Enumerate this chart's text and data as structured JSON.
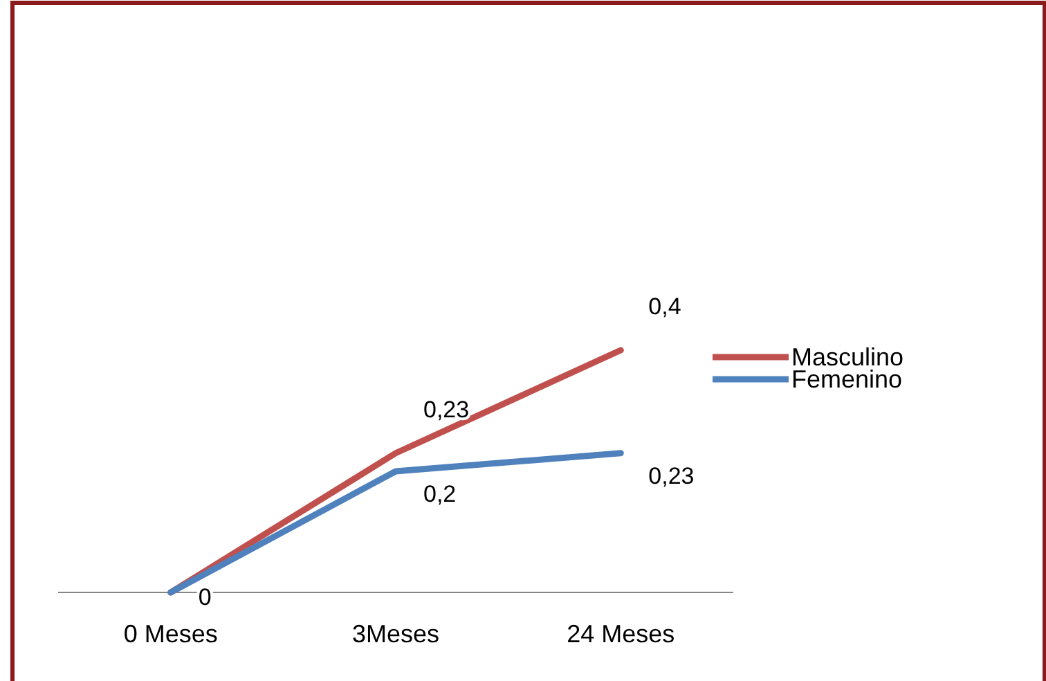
{
  "chart_data": {
    "type": "line",
    "categories": [
      "0 Meses",
      "3Meses",
      "24 Meses"
    ],
    "series": [
      {
        "name": "Masculino",
        "color": "#c0504d",
        "values": [
          0,
          0.23,
          0.4
        ],
        "value_labels": [
          "0",
          "0,23",
          "0,4"
        ]
      },
      {
        "name": "Femenino",
        "color": "#4f81bd",
        "values": [
          0,
          0.2,
          0.23
        ],
        "value_labels": [
          null,
          "0,2",
          "0,23"
        ]
      }
    ],
    "legend": "right",
    "marker": "none",
    "line_style": "solid",
    "grid": false
  }
}
